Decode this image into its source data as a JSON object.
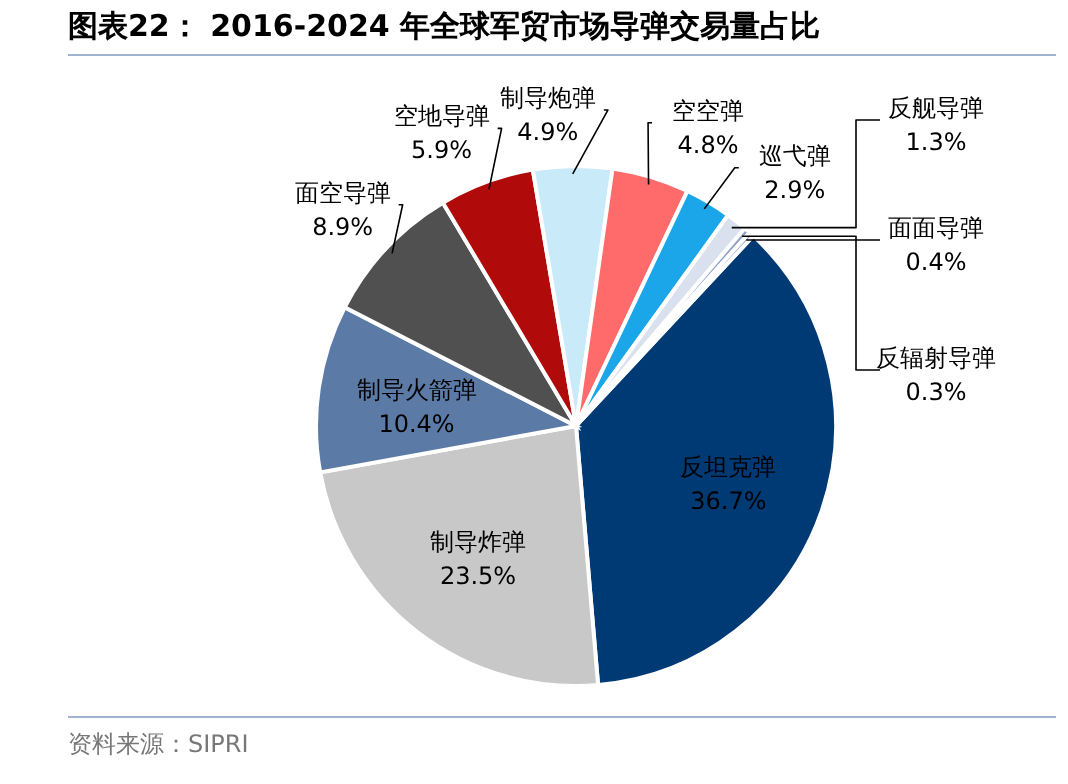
{
  "chart_data": {
    "type": "pie",
    "title": "图表22：  2016-2024 年全球军贸市场导弹交易量占比",
    "categories": [
      "反坦克弹",
      "制导炸弹",
      "制导火箭弹",
      "面空导弹",
      "空地导弹",
      "制导炮弹",
      "空空弹",
      "巡弋弹",
      "反舰导弹",
      "面面导弹",
      "反辐射导弹"
    ],
    "values": [
      36.7,
      23.5,
      10.4,
      8.9,
      5.9,
      4.9,
      4.8,
      2.9,
      1.3,
      0.4,
      0.3
    ],
    "value_labels": [
      "36.7%",
      "23.5%",
      "10.4%",
      "8.9%",
      "5.9%",
      "4.9%",
      "4.8%",
      "2.9%",
      "1.3%",
      "0.4%",
      "0.3%"
    ],
    "colors": [
      "#003a75",
      "#c8c8c8",
      "#5b7ba6",
      "#505050",
      "#b00a0a",
      "#c9eaf8",
      "#ff6b6b",
      "#1aa6e8",
      "#d9e0ee",
      "#8fa3c8",
      "#6f86b0"
    ],
    "annotations": [
      "资料来源：SIPRI"
    ]
  }
}
